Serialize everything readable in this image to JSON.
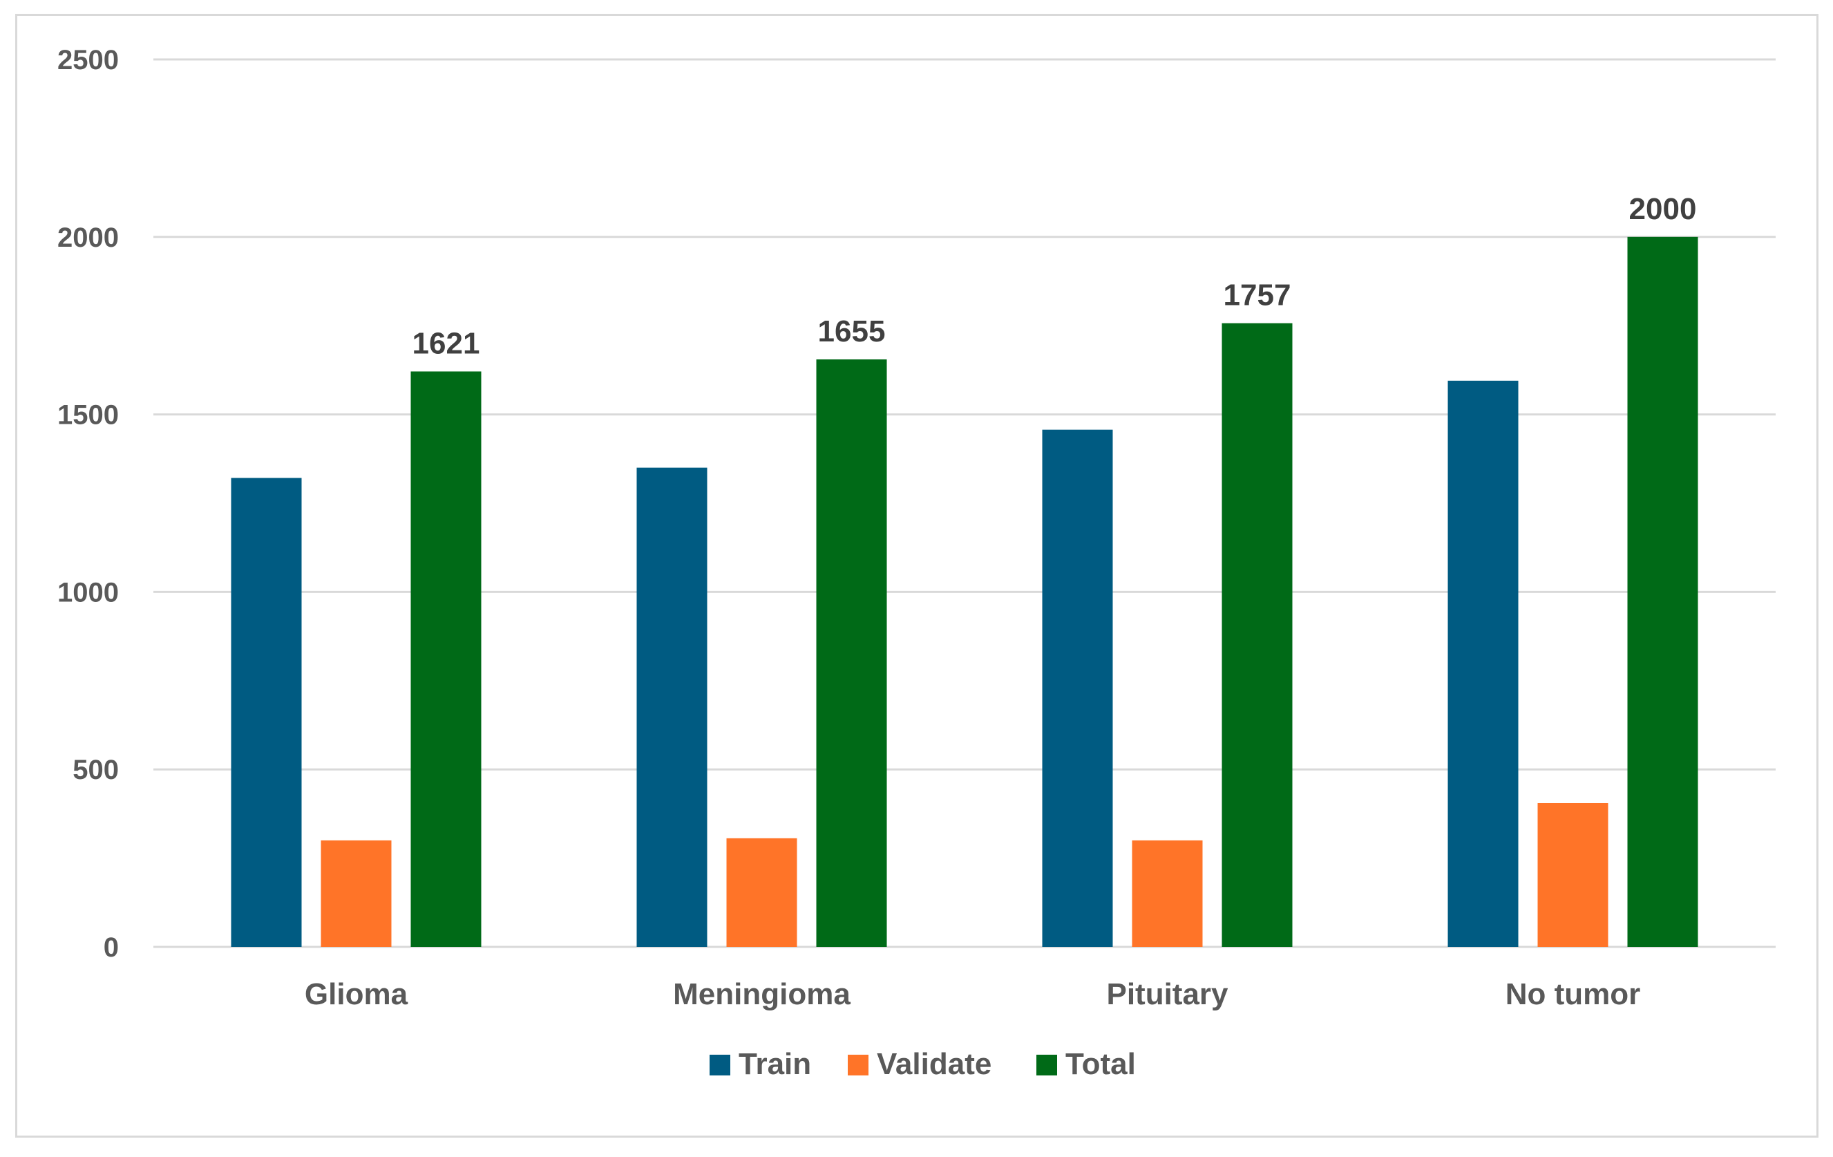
{
  "chart_data": {
    "type": "bar",
    "title": "",
    "xlabel": "",
    "ylabel": "",
    "categories": [
      "Glioma",
      "Meningioma",
      "Pituitary",
      "No tumor"
    ],
    "series": [
      {
        "name": "Train",
        "color": "#005b82",
        "values": [
          1321,
          1350,
          1457,
          1595
        ]
      },
      {
        "name": "Validate",
        "color": "#ff7428",
        "values": [
          300,
          306,
          300,
          405
        ]
      },
      {
        "name": "Total",
        "color": "#006a17",
        "values": [
          1621,
          1655,
          1757,
          2000
        ]
      }
    ],
    "data_labels": {
      "series": "Total",
      "values": [
        "1621",
        "1655",
        "1757",
        "2000"
      ]
    },
    "ylim": [
      0,
      2500
    ],
    "yticks": [
      "0",
      "500",
      "1000",
      "1500",
      "2000",
      "2500"
    ],
    "grid": true,
    "legend": "bottom-center"
  }
}
